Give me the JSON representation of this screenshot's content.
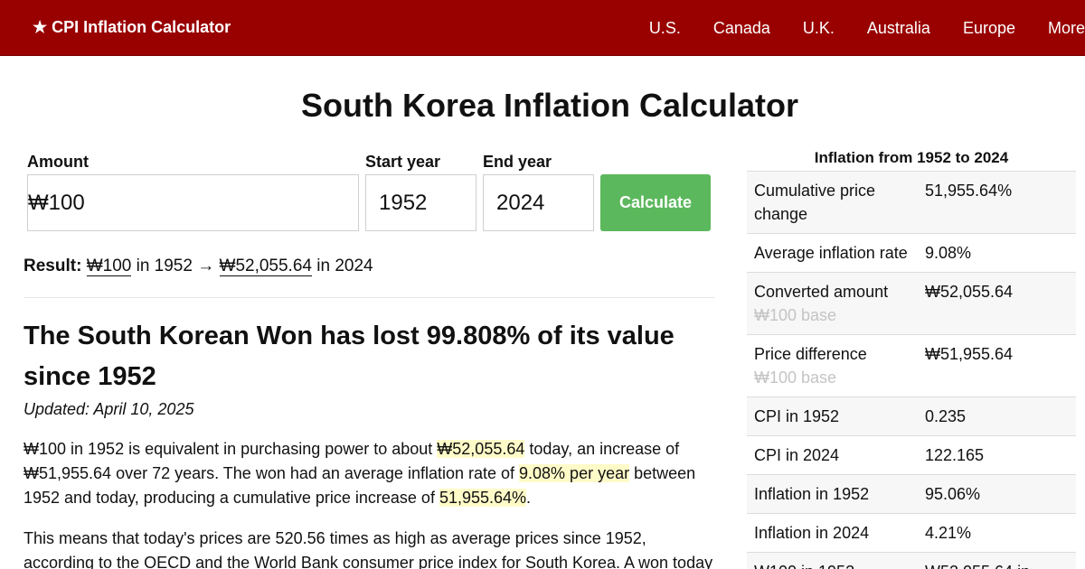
{
  "header": {
    "brand": "★ CPI Inflation Calculator",
    "nav": [
      "U.S.",
      "Canada",
      "U.K.",
      "Australia",
      "Europe",
      "More"
    ]
  },
  "page_title": "South Korea Inflation Calculator",
  "form": {
    "amount_label": "Amount",
    "amount_value": "₩100",
    "start_label": "Start year",
    "start_value": "1952",
    "end_label": "End year",
    "end_value": "2024",
    "button": "Calculate"
  },
  "result": {
    "label": "Result:",
    "from_amount": "₩100",
    "from_text": "in 1952 →",
    "to_amount": "₩52,055.64",
    "to_text": "in 2024"
  },
  "article": {
    "headline": "The South Korean Won has lost 99.808% of its value since 1952",
    "updated": "Updated: April 10, 2025",
    "p1": {
      "t1": "₩100 in 1952 is equivalent in purchasing power to about ",
      "h1": "₩52,055.64",
      "t2": " today, an increase of ₩51,955.64 over 72 years. The won had an average inflation rate of ",
      "h2": "9.08% per year",
      "t3": " between 1952 and today, producing a cumulative price increase of ",
      "h3": "51,955.64%",
      "t4": "."
    },
    "p2": "This means that today's prices are 520.56 times as high as average prices since 1952, according to the OECD and the World Bank consumer price index for South Korea. A won today"
  },
  "sidebar": {
    "title": "Inflation from 1952 to 2024",
    "rows": [
      {
        "key": "Cumulative price change",
        "value": "51,955.64%",
        "sub": ""
      },
      {
        "key": "Average inflation rate",
        "value": "9.08%",
        "sub": ""
      },
      {
        "key": "Converted amount",
        "value": "₩52,055.64",
        "sub": "₩100 base"
      },
      {
        "key": "Price difference",
        "value": "₩51,955.64",
        "sub": "₩100 base"
      },
      {
        "key": "CPI in 1952",
        "value": "0.235",
        "sub": ""
      },
      {
        "key": "CPI in 2024",
        "value": "122.165",
        "sub": ""
      },
      {
        "key": "Inflation in 1952",
        "value": "95.06%",
        "sub": ""
      },
      {
        "key": "Inflation in 2024",
        "value": "4.21%",
        "sub": ""
      },
      {
        "key": "₩100 in 1952",
        "value": "₩52,055.64 in",
        "sub": ""
      }
    ]
  }
}
